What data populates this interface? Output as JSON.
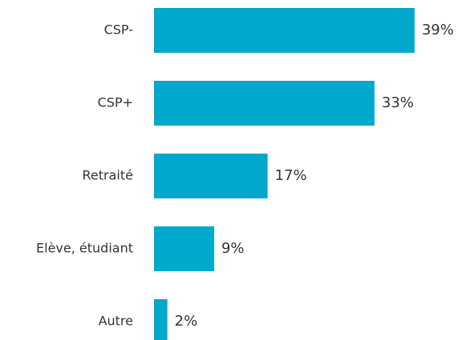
{
  "chart_data": {
    "type": "bar",
    "orientation": "horizontal",
    "categories": [
      "CSP-",
      "CSP+",
      "Retraité",
      "Elève, étudiant",
      "Autre"
    ],
    "values": [
      39,
      33,
      17,
      9,
      2
    ],
    "value_labels": [
      "39%",
      "33%",
      "17%",
      "9%",
      "2%"
    ],
    "color": "#00a8cc"
  }
}
